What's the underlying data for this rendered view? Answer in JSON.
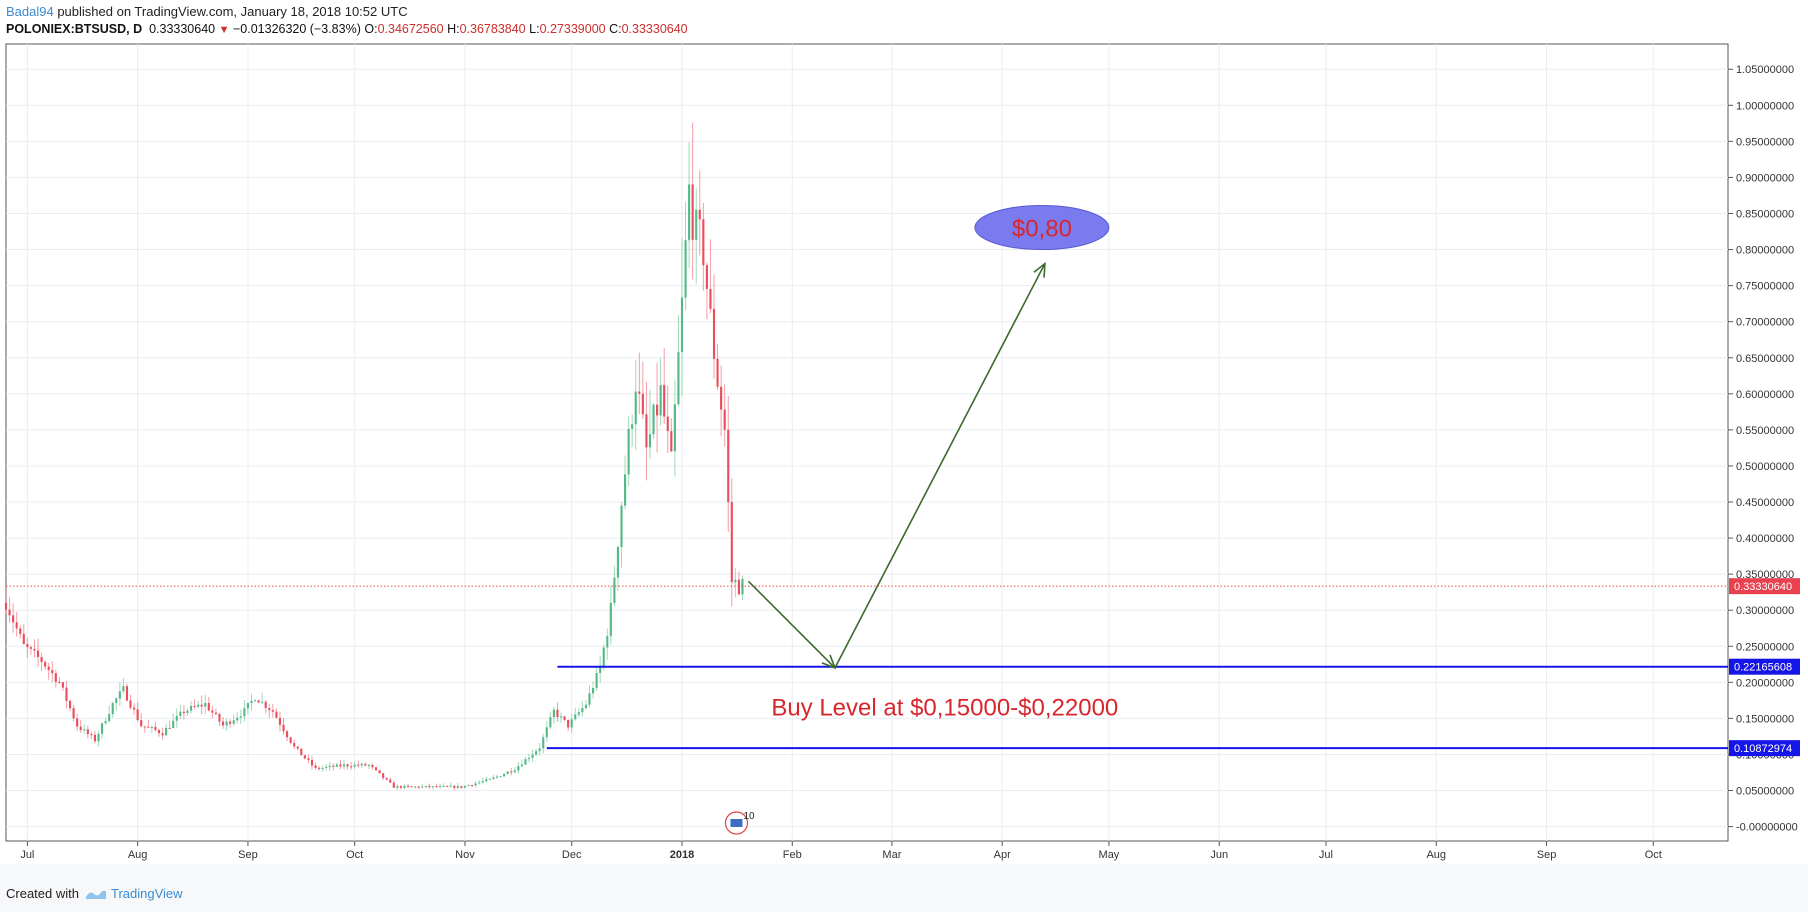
{
  "header": {
    "user": "Badal94",
    "published_text": " published on TradingView.com, January 18, 2018 10:52 UTC",
    "symbol": "POLONIEX:BTSUSD, D",
    "last": "0.33330640",
    "change": "−0.01326320 (−3.83%)",
    "o_label": "O:",
    "o_value": "0.34672560",
    "h_label": "H:",
    "h_value": "0.36783840",
    "l_label": "L:",
    "l_value": "0.27339000",
    "c_label": "C:",
    "c_value": "0.33330640"
  },
  "footer": {
    "created_with": "Created with",
    "brand": "TradingView"
  },
  "colors": {
    "up": "#53b987",
    "down": "#eb4d5c",
    "level": "#1515e8",
    "arrow": "#3b6a2a",
    "annotation_text": "#d8262e",
    "ellipse": "#7b7bf0",
    "grid": "#e8eef2"
  },
  "chart_data": {
    "type": "candlestick",
    "symbol": "POLONIEX:BTSUSD",
    "interval": "D",
    "x_axis": {
      "labels": [
        "Jul",
        "Aug",
        "Sep",
        "Oct",
        "Nov",
        "Dec",
        "2018",
        "Feb",
        "Mar",
        "Apr",
        "May",
        "Jun",
        "Jul",
        "Aug",
        "Sep",
        "Oct"
      ],
      "dates": [
        "2017-07-01",
        "2017-08-01",
        "2017-09-01",
        "2017-10-01",
        "2017-11-01",
        "2017-12-01",
        "2018-01-01",
        "2018-02-01",
        "2018-03-01",
        "2018-04-01",
        "2018-05-01",
        "2018-06-01",
        "2018-07-01",
        "2018-08-01",
        "2018-09-01",
        "2018-10-01"
      ],
      "range": [
        "2017-06-25",
        "2018-10-22"
      ]
    },
    "y_axis": {
      "ticks": [
        -0.0,
        0.05,
        0.1,
        0.15,
        0.2,
        0.25,
        0.3,
        0.35,
        0.4,
        0.45,
        0.5,
        0.55,
        0.6,
        0.65,
        0.7,
        0.75,
        0.8,
        0.85,
        0.9,
        0.95,
        1.0,
        1.05
      ],
      "tick_labels": [
        "-0.00000000",
        "0.05000000",
        "0.10000000",
        "0.15000000",
        "0.20000000",
        "0.25000000",
        "0.30000000",
        "0.35000000",
        "0.40000000",
        "0.45000000",
        "0.50000000",
        "0.55000000",
        "0.60000000",
        "0.65000000",
        "0.70000000",
        "0.75000000",
        "0.80000000",
        "0.85000000",
        "0.90000000",
        "0.95000000",
        "1.00000000",
        "1.05000000"
      ],
      "range": [
        -0.02,
        1.085
      ],
      "position": "right"
    },
    "grid": true,
    "last_price": {
      "value": 0.3333064,
      "label": "0.33330640"
    },
    "levels": [
      {
        "value": 0.22165608,
        "label": "0.22165608",
        "from": "2017-11-27"
      },
      {
        "value": 0.10872974,
        "label": "0.10872974",
        "from": "2017-11-24"
      }
    ],
    "annotations": {
      "buy_text": "Buy Level at $0,15000-$0,22000",
      "target_text": "$0,80",
      "target_value": 0.8,
      "target_date": "2018-04-13",
      "dip_value": 0.22,
      "dip_date": "2018-02-13",
      "arrow_start_date": "2018-01-18",
      "arrow_start_value": 0.34,
      "event_badge": "10",
      "event_date": "2018-01-18"
    },
    "anchors": [
      [
        "2017-06-25",
        0.31
      ],
      [
        "2017-06-30",
        0.25
      ],
      [
        "2017-07-05",
        0.23
      ],
      [
        "2017-07-10",
        0.2
      ],
      [
        "2017-07-15",
        0.14
      ],
      [
        "2017-07-20",
        0.12
      ],
      [
        "2017-07-25",
        0.17
      ],
      [
        "2017-07-28",
        0.19
      ],
      [
        "2017-08-02",
        0.14
      ],
      [
        "2017-08-08",
        0.13
      ],
      [
        "2017-08-14",
        0.16
      ],
      [
        "2017-08-20",
        0.17
      ],
      [
        "2017-08-25",
        0.14
      ],
      [
        "2017-08-31",
        0.16
      ],
      [
        "2017-09-03",
        0.18
      ],
      [
        "2017-09-08",
        0.16
      ],
      [
        "2017-09-14",
        0.11
      ],
      [
        "2017-09-20",
        0.08
      ],
      [
        "2017-09-28",
        0.085
      ],
      [
        "2017-10-05",
        0.085
      ],
      [
        "2017-10-12",
        0.055
      ],
      [
        "2017-10-20",
        0.055
      ],
      [
        "2017-10-31",
        0.055
      ],
      [
        "2017-11-08",
        0.065
      ],
      [
        "2017-11-15",
        0.08
      ],
      [
        "2017-11-22",
        0.11
      ],
      [
        "2017-11-26",
        0.16
      ],
      [
        "2017-11-30",
        0.14
      ],
      [
        "2017-12-05",
        0.17
      ],
      [
        "2017-12-09",
        0.22
      ],
      [
        "2017-12-12",
        0.3
      ],
      [
        "2017-12-15",
        0.45
      ],
      [
        "2017-12-19",
        0.62
      ],
      [
        "2017-12-22",
        0.52
      ],
      [
        "2017-12-26",
        0.6
      ],
      [
        "2017-12-29",
        0.5
      ],
      [
        "2018-01-01",
        0.72
      ],
      [
        "2018-01-03",
        0.88
      ],
      [
        "2018-01-05",
        0.82
      ],
      [
        "2018-01-07",
        0.8
      ],
      [
        "2018-01-09",
        0.7
      ],
      [
        "2018-01-11",
        0.62
      ],
      [
        "2018-01-13",
        0.55
      ],
      [
        "2018-01-15",
        0.34
      ],
      [
        "2018-01-18",
        0.3333
      ]
    ]
  }
}
